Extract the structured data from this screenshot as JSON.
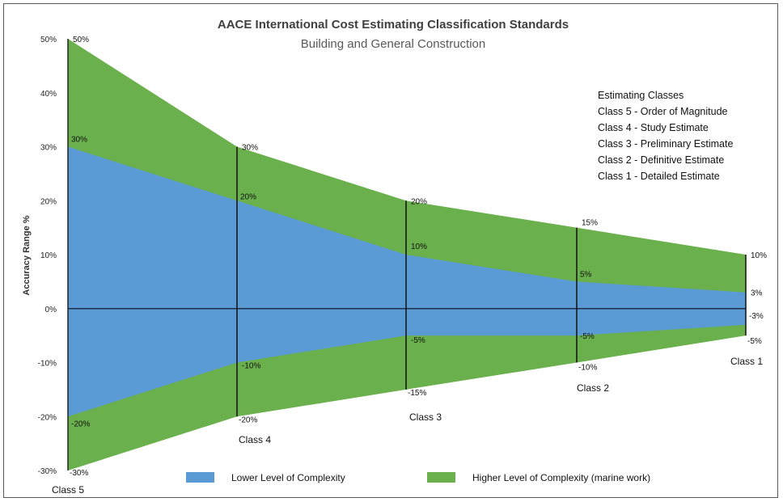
{
  "chart_data": {
    "type": "area",
    "title": "AACE International Cost Estimating Classification Standards",
    "subtitle": "Building and General Construction",
    "ylabel": "Accuracy Range %",
    "xlabel": "",
    "ylim": [
      -30,
      50
    ],
    "yticks": [
      50,
      40,
      30,
      20,
      10,
      0,
      -10,
      -20,
      -30
    ],
    "ytick_labels": [
      "50%",
      "40%",
      "30%",
      "20%",
      "10%",
      "0%",
      "-10%",
      "-20%",
      "-30%"
    ],
    "categories": [
      "Class 5",
      "Class 4",
      "Class 3",
      "Class 2",
      "Class 1"
    ],
    "series": [
      {
        "name": "Higher Level of Complexity (marine work)",
        "color": "#6ab04c",
        "upper": [
          50,
          30,
          20,
          15,
          10
        ],
        "lower": [
          -30,
          -20,
          -15,
          -10,
          -5
        ],
        "upper_labels": [
          "50%",
          "30%",
          "20%",
          "15%",
          "10%"
        ],
        "lower_labels": [
          "-30%",
          "-20%",
          "-15%",
          "-10%",
          "-5%"
        ]
      },
      {
        "name": "Lower Level of Complexity",
        "color": "#5b9bd5",
        "upper": [
          30,
          20,
          10,
          5,
          3
        ],
        "lower": [
          -20,
          -10,
          -5,
          -5,
          -3
        ],
        "upper_labels": [
          "30%",
          "20%",
          "10%",
          "5%",
          "3%"
        ],
        "lower_labels": [
          "-20%",
          "-10%",
          "-5%",
          "-5%",
          "-3%"
        ]
      }
    ],
    "legend": {
      "position": "bottom",
      "items": [
        {
          "label": "Lower Level of Complexity",
          "color": "#5b9bd5"
        },
        {
          "label": "Higher Level of Complexity (marine work)",
          "color": "#6ab04c"
        }
      ]
    },
    "annotation": {
      "heading": "Estimating Classes",
      "lines": [
        "Class 5 - Order of Magnitude",
        "Class 4 - Study Estimate",
        "Class 3 - Preliminary Estimate",
        "Class 2 - Definitive Estimate",
        "Class 1 - Detailed Estimate"
      ]
    },
    "grid": false
  }
}
